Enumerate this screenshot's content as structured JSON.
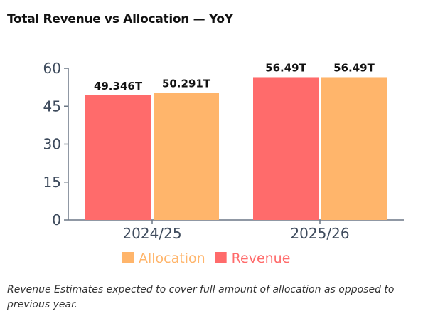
{
  "title": "Total Revenue vs Allocation — YoY",
  "footnote": "Revenue Estimates expected to cover full amount of allocation as opposed to previous year.",
  "chart_data": {
    "type": "bar",
    "title": "Total Revenue vs Allocation — YoY",
    "categories": [
      "2024/25",
      "2025/26"
    ],
    "series": [
      {
        "name": "Revenue",
        "values": [
          49.346,
          56.49
        ],
        "labels": [
          "49.346T",
          "56.49T"
        ],
        "color": "#ff6b6b"
      },
      {
        "name": "Allocation",
        "values": [
          50.291,
          56.49
        ],
        "labels": [
          "50.291T",
          "56.49T"
        ],
        "color": "#ffb56b"
      }
    ],
    "legend_order": [
      "Allocation",
      "Revenue"
    ],
    "yticks": [
      "0",
      "15",
      "30",
      "45",
      "60"
    ],
    "ylim": [
      0,
      60
    ],
    "grid": false,
    "legend_position": "bottom"
  }
}
